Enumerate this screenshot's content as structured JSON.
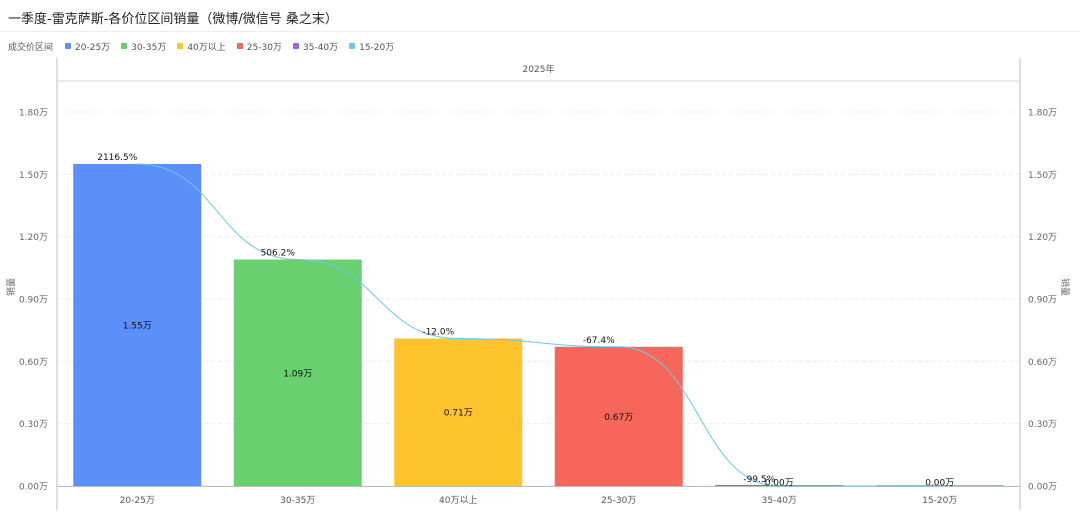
{
  "title": "一季度-雷克萨斯-各价位区间销量（微博/微信号 桑之末）",
  "legend": {
    "title": "成交价区间",
    "items": [
      {
        "label": "20-25万",
        "color": "#5b8ff9"
      },
      {
        "label": "30-35万",
        "color": "#68d06e"
      },
      {
        "label": "40万以上",
        "color": "#fdc42d"
      },
      {
        "label": "25-30万",
        "color": "#f6665b"
      },
      {
        "label": "35-40万",
        "color": "#9b62e0"
      },
      {
        "label": "15-20万",
        "color": "#6dc8ec"
      }
    ]
  },
  "chart_data": {
    "type": "bar",
    "column_header": "2025年",
    "categories": [
      "20-25万",
      "30-35万",
      "40万以上",
      "25-30万",
      "35-40万",
      "15-20万"
    ],
    "values": [
      1.55,
      1.09,
      0.71,
      0.67,
      0.0,
      0.0
    ],
    "value_labels": [
      "1.55万",
      "1.09万",
      "0.71万",
      "0.67万",
      "0.00万",
      "0.00万"
    ],
    "colors": [
      "#5b8ff9",
      "#68d06e",
      "#fdc42d",
      "#f6665b",
      "#9b62e0",
      "#6dc8ec"
    ],
    "growth_labels": [
      "2116.5%",
      "506.2%",
      "-12.0%",
      "-67.4%",
      "-99.5%",
      ""
    ],
    "ylabel": "销量",
    "ylim": [
      0,
      1.8
    ],
    "yticks": [
      0,
      0.3,
      0.6,
      0.9,
      1.2,
      1.5,
      1.8
    ],
    "ytick_labels": [
      "0.00万",
      "0.30万",
      "0.60万",
      "0.90万",
      "1.20万",
      "1.50万",
      "1.80万"
    ],
    "line_color": "#6dc8ec",
    "grid": true
  }
}
